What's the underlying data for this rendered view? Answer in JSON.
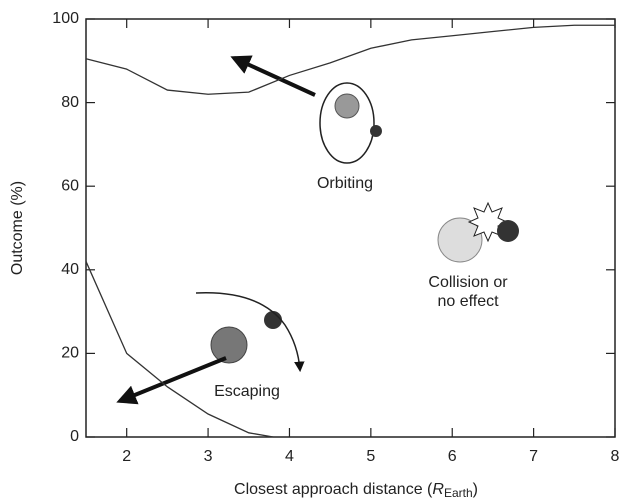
{
  "chart_data": {
    "type": "line",
    "ylabel": "Outcome (%)",
    "xlabel": {
      "text": "Closest approach distance (",
      "symbol": "R",
      "subscript": "Earth",
      "close": ")"
    },
    "xlim": [
      1.5,
      8
    ],
    "xticks": [
      2,
      3,
      4,
      5,
      6,
      7,
      8
    ],
    "ylim": [
      0,
      100
    ],
    "yticks": [
      0,
      20,
      40,
      60,
      80,
      100
    ],
    "series": [
      {
        "color": "#333333",
        "x": [
          1.5,
          2,
          2.5,
          3,
          3.5,
          4,
          4.5,
          5,
          5.5,
          6,
          6.5,
          7,
          7.5,
          8
        ],
        "values": [
          90.5,
          88,
          83,
          82,
          82.5,
          86.5,
          89.5,
          93,
          95,
          96,
          97,
          98,
          98.5,
          98.5
        ]
      },
      {
        "color": "#333333",
        "x": [
          1.5,
          2,
          2.5,
          3,
          3.5,
          3.8
        ],
        "values": [
          42,
          20,
          12,
          5.5,
          1,
          0
        ]
      }
    ],
    "annotations": {
      "orbiting": "Orbiting",
      "collision": [
        "Collision or",
        "no effect"
      ],
      "escaping": "Escaping"
    }
  }
}
